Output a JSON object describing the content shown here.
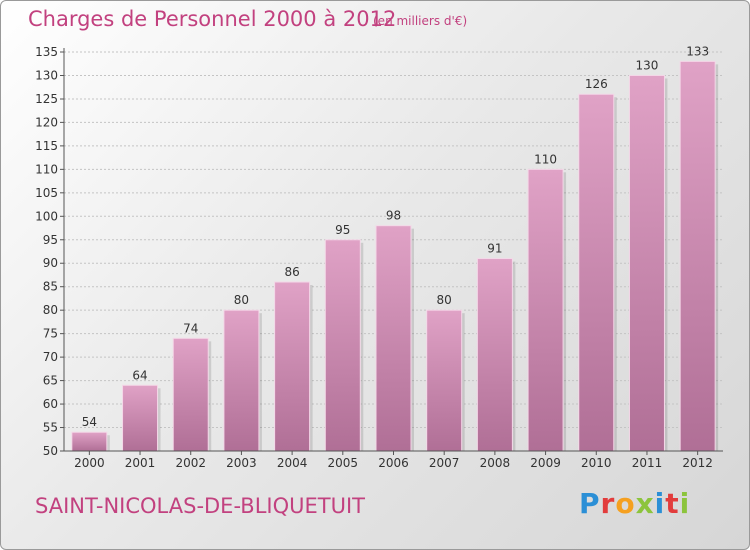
{
  "title": "Charges de Personnel 2000 à 2012",
  "subtitle": "(en milliers d'€)",
  "commune": "SAINT-NICOLAS-DE-BLIQUETUIT",
  "logo": {
    "letters": [
      {
        "char": "P",
        "color": "#2b8fd6"
      },
      {
        "char": "r",
        "color": "#e23c3c"
      },
      {
        "char": "o",
        "color": "#f5a020"
      },
      {
        "char": "x",
        "color": "#8cc43c"
      },
      {
        "char": "i",
        "color": "#2b8fd6"
      },
      {
        "char": "t",
        "color": "#e23c3c"
      },
      {
        "char": "i",
        "color": "#8cc43c"
      }
    ]
  },
  "colors": {
    "bar_top": "#e0a2c6",
    "bar_bottom": "#b06f96",
    "accent": "#c2417f"
  },
  "chart_data": {
    "type": "bar",
    "title": "Charges de Personnel 2000 à 2012",
    "subtitle": "(en milliers d'€)",
    "categories": [
      "2000",
      "2001",
      "2002",
      "2003",
      "2004",
      "2005",
      "2006",
      "2007",
      "2008",
      "2009",
      "2010",
      "2011",
      "2012"
    ],
    "values": [
      54,
      64,
      74,
      80,
      86,
      95,
      98,
      80,
      91,
      110,
      126,
      130,
      133
    ],
    "ylim": [
      50,
      135
    ],
    "yticks": [
      50,
      55,
      60,
      65,
      70,
      75,
      80,
      85,
      90,
      95,
      100,
      105,
      110,
      115,
      120,
      125,
      130,
      135
    ],
    "grid": true,
    "legend": "none"
  }
}
